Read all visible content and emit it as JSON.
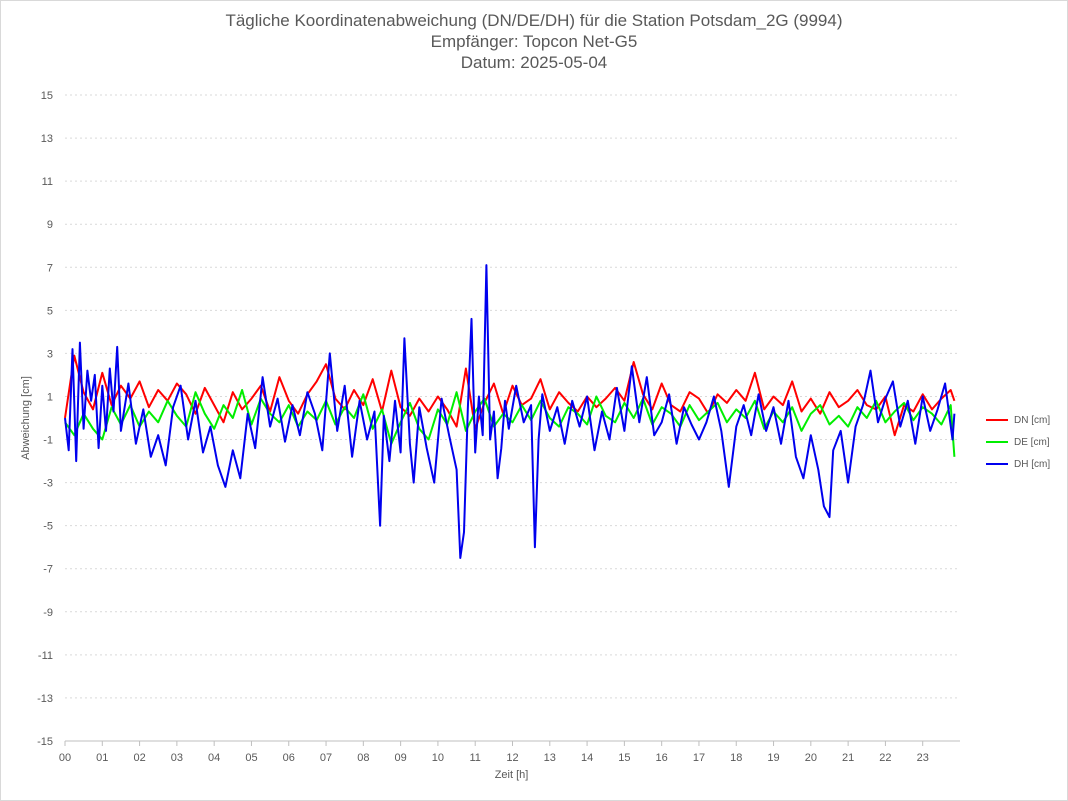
{
  "chart_data": {
    "type": "line",
    "title": [
      "Tägliche Koordinatenabweichung (DN/DE/DH) für die Station Potsdam_2G (9994)",
      "Empfänger: Topcon Net-G5",
      "Datum: 2025-05-04"
    ],
    "xlabel": "Zeit [h]",
    "ylabel": "Abweichung [cm]",
    "xlim": [
      0,
      24
    ],
    "ylim": [
      -15,
      15
    ],
    "x_ticks": [
      "00",
      "01",
      "02",
      "03",
      "04",
      "05",
      "06",
      "07",
      "08",
      "09",
      "10",
      "11",
      "12",
      "13",
      "14",
      "15",
      "16",
      "17",
      "18",
      "19",
      "20",
      "21",
      "22",
      "23"
    ],
    "y_ticks": [
      "15",
      "13",
      "11",
      "9",
      "7",
      "5",
      "3",
      "1",
      "-1",
      "-3",
      "-5",
      "-7",
      "-9",
      "-11",
      "-13",
      "-15"
    ],
    "y_tick_values": [
      15,
      13,
      11,
      9,
      7,
      5,
      3,
      1,
      -1,
      -3,
      -5,
      -7,
      -9,
      -11,
      -13,
      -15
    ],
    "grid": true,
    "legend_position": "right",
    "series": [
      {
        "name": "DN [cm]",
        "color": "#ff0000",
        "x": [
          0,
          0.25,
          0.5,
          0.75,
          1,
          1.25,
          1.5,
          1.75,
          2,
          2.25,
          2.5,
          2.75,
          3,
          3.25,
          3.5,
          3.75,
          4,
          4.25,
          4.5,
          4.75,
          5,
          5.25,
          5.5,
          5.75,
          6,
          6.25,
          6.5,
          6.75,
          7,
          7.25,
          7.5,
          7.75,
          8,
          8.25,
          8.5,
          8.75,
          9,
          9.25,
          9.5,
          9.75,
          10,
          10.25,
          10.5,
          10.75,
          11,
          11.25,
          11.5,
          11.75,
          12,
          12.25,
          12.5,
          12.75,
          13,
          13.25,
          13.5,
          13.75,
          14,
          14.25,
          14.5,
          14.75,
          15,
          15.25,
          15.5,
          15.75,
          16,
          16.25,
          16.5,
          16.75,
          17,
          17.25,
          17.5,
          17.75,
          18,
          18.25,
          18.5,
          18.75,
          19,
          19.25,
          19.5,
          19.75,
          20,
          20.25,
          20.5,
          20.75,
          21,
          21.25,
          21.5,
          21.75,
          22,
          22.25,
          22.5,
          22.75,
          23,
          23.25,
          23.5,
          23.75,
          23.85
        ],
        "values": [
          0,
          2.9,
          1.2,
          0.4,
          2.1,
          0.6,
          1.5,
          0.9,
          1.7,
          0.5,
          1.3,
          0.8,
          1.6,
          1.1,
          0.2,
          1.4,
          0.6,
          -0.2,
          1.2,
          0.4,
          0.9,
          1.5,
          0.3,
          1.9,
          0.8,
          0.2,
          1.1,
          1.7,
          2.5,
          0.9,
          0.4,
          1.3,
          0.6,
          1.8,
          0.3,
          2.2,
          0.5,
          0.1,
          0.9,
          0.3,
          1.0,
          0.4,
          -0.4,
          2.3,
          -0.5,
          0.7,
          1.6,
          0.2,
          1.5,
          0.6,
          0.9,
          1.8,
          0.4,
          1.2,
          0.7,
          0.3,
          1.0,
          0.5,
          0.9,
          1.4,
          0.8,
          2.6,
          1.1,
          0.4,
          1.6,
          0.6,
          0.3,
          1.2,
          0.9,
          0.2,
          1.1,
          0.7,
          1.3,
          0.8,
          2.1,
          0.4,
          1.0,
          0.6,
          1.7,
          0.3,
          0.9,
          0.2,
          1.2,
          0.5,
          0.8,
          1.3,
          0.6,
          0.4,
          1.0,
          -0.8,
          0.6,
          0.3,
          1.1,
          0.4,
          0.9,
          1.3,
          0.8
        ]
      },
      {
        "name": "DE [cm]",
        "color": "#00ee00",
        "x": [
          0,
          0.25,
          0.5,
          0.75,
          1,
          1.25,
          1.5,
          1.75,
          2,
          2.25,
          2.5,
          2.75,
          3,
          3.25,
          3.5,
          3.75,
          4,
          4.25,
          4.5,
          4.75,
          5,
          5.25,
          5.5,
          5.75,
          6,
          6.25,
          6.5,
          6.75,
          7,
          7.25,
          7.5,
          7.75,
          8,
          8.25,
          8.5,
          8.75,
          9,
          9.25,
          9.5,
          9.75,
          10,
          10.25,
          10.5,
          10.75,
          11,
          11.25,
          11.5,
          11.75,
          12,
          12.25,
          12.5,
          12.75,
          13,
          13.25,
          13.5,
          13.75,
          14,
          14.25,
          14.5,
          14.75,
          15,
          15.25,
          15.5,
          15.75,
          16,
          16.25,
          16.5,
          16.75,
          17,
          17.25,
          17.5,
          17.75,
          18,
          18.25,
          18.5,
          18.75,
          19,
          19.25,
          19.5,
          19.75,
          20,
          20.25,
          20.5,
          20.75,
          21,
          21.25,
          21.5,
          21.75,
          22,
          22.25,
          22.5,
          22.75,
          23,
          23.25,
          23.5,
          23.75,
          23.85
        ],
        "values": [
          -0.2,
          -0.8,
          0.2,
          -0.5,
          -1.0,
          0.5,
          -0.3,
          0.6,
          -0.4,
          0.3,
          -0.2,
          0.8,
          0.1,
          -0.4,
          1.2,
          0.2,
          -0.5,
          0.6,
          0.0,
          1.3,
          -0.3,
          0.9,
          0.2,
          -0.2,
          0.6,
          -0.4,
          0.3,
          -0.1,
          0.8,
          -0.3,
          0.5,
          0.0,
          1.1,
          -0.5,
          0.4,
          -1.2,
          -0.2,
          0.7,
          -0.5,
          -1.0,
          0.4,
          -0.3,
          1.2,
          -0.6,
          0.3,
          0.9,
          -0.4,
          0.2,
          -0.2,
          0.6,
          -0.1,
          0.8,
          0.0,
          -0.4,
          0.5,
          0.2,
          -0.3,
          1.0,
          0.1,
          -0.2,
          0.7,
          0.0,
          0.9,
          -0.3,
          0.5,
          0.2,
          -0.4,
          0.6,
          -0.1,
          0.3,
          0.7,
          -0.2,
          0.4,
          0.0,
          0.8,
          -0.5,
          0.3,
          -0.2,
          0.5,
          -0.6,
          0.2,
          0.6,
          -0.3,
          0.1,
          -0.4,
          0.5,
          0.0,
          0.8,
          -0.2,
          0.3,
          0.7,
          -0.1,
          0.5,
          0.2,
          -0.3,
          0.6,
          -1.8
        ]
      },
      {
        "name": "DH [cm]",
        "color": "#0000ee",
        "x": [
          0,
          0.1,
          0.2,
          0.3,
          0.4,
          0.5,
          0.6,
          0.7,
          0.8,
          0.9,
          1.0,
          1.1,
          1.2,
          1.3,
          1.4,
          1.5,
          1.7,
          1.9,
          2.1,
          2.3,
          2.5,
          2.7,
          2.9,
          3.1,
          3.3,
          3.5,
          3.7,
          3.9,
          4.1,
          4.3,
          4.5,
          4.7,
          4.9,
          5.1,
          5.3,
          5.5,
          5.7,
          5.9,
          6.1,
          6.3,
          6.5,
          6.7,
          6.9,
          7.1,
          7.3,
          7.5,
          7.7,
          7.9,
          8.1,
          8.3,
          8.45,
          8.55,
          8.7,
          8.85,
          9.0,
          9.1,
          9.25,
          9.35,
          9.5,
          9.7,
          9.9,
          10.1,
          10.3,
          10.5,
          10.6,
          10.7,
          10.8,
          10.9,
          11.0,
          11.1,
          11.2,
          11.3,
          11.4,
          11.5,
          11.6,
          11.7,
          11.8,
          11.9,
          12.1,
          12.3,
          12.5,
          12.6,
          12.7,
          12.8,
          13.0,
          13.2,
          13.4,
          13.6,
          13.8,
          14.0,
          14.2,
          14.4,
          14.6,
          14.8,
          15.0,
          15.2,
          15.4,
          15.6,
          15.8,
          16.0,
          16.2,
          16.4,
          16.6,
          16.8,
          17.0,
          17.2,
          17.4,
          17.6,
          17.8,
          18.0,
          18.2,
          18.4,
          18.6,
          18.8,
          19.0,
          19.2,
          19.4,
          19.6,
          19.8,
          20.0,
          20.2,
          20.35,
          20.5,
          20.6,
          20.8,
          21.0,
          21.2,
          21.4,
          21.6,
          21.8,
          22.0,
          22.2,
          22.4,
          22.6,
          22.8,
          23.0,
          23.2,
          23.4,
          23.6,
          23.8,
          23.85
        ],
        "values": [
          0,
          -1.5,
          3.2,
          -2.0,
          3.5,
          -0.5,
          2.2,
          0.8,
          2.0,
          -1.4,
          1.5,
          -0.6,
          2.3,
          0.3,
          3.3,
          -0.6,
          1.6,
          -1.2,
          0.4,
          -1.8,
          -0.8,
          -2.2,
          0.5,
          1.5,
          -1.0,
          0.8,
          -1.6,
          -0.4,
          -2.2,
          -3.2,
          -1.5,
          -2.8,
          0.2,
          -1.4,
          1.9,
          -0.4,
          0.9,
          -1.1,
          0.6,
          -0.8,
          1.2,
          0.2,
          -1.5,
          3.0,
          -0.6,
          1.5,
          -1.8,
          0.8,
          -1.0,
          0.3,
          -5.0,
          0.1,
          -2.0,
          0.8,
          -1.6,
          3.7,
          -1.2,
          -3.0,
          0.5,
          -1.4,
          -3.0,
          0.9,
          -0.8,
          -2.4,
          -6.5,
          -5.3,
          0.4,
          4.6,
          -1.6,
          1.0,
          -0.8,
          7.1,
          -1.0,
          0.3,
          -2.8,
          -1.4,
          0.8,
          -0.5,
          1.5,
          -0.2,
          0.6,
          -6.0,
          -1.0,
          1.1,
          -0.6,
          0.5,
          -1.2,
          0.8,
          -0.4,
          1.0,
          -1.5,
          0.3,
          -1.0,
          1.4,
          -0.6,
          2.4,
          -0.2,
          1.9,
          -0.8,
          -0.2,
          1.1,
          -1.2,
          0.5,
          -0.3,
          -1.0,
          -0.2,
          1.0,
          -0.6,
          -3.2,
          -0.4,
          0.6,
          -0.8,
          1.1,
          -0.6,
          0.5,
          -1.2,
          0.8,
          -1.8,
          -2.8,
          -0.8,
          -2.4,
          -4.1,
          -4.6,
          -1.5,
          -0.6,
          -3.0,
          -0.4,
          0.6,
          2.2,
          -0.2,
          0.9,
          1.7,
          -0.4,
          0.8,
          -1.2,
          1.0,
          -0.6,
          0.4,
          1.6,
          -1.0,
          0.2
        ]
      }
    ],
    "legend": [
      "DN [cm]",
      "DE [cm]",
      "DH [cm]"
    ]
  }
}
